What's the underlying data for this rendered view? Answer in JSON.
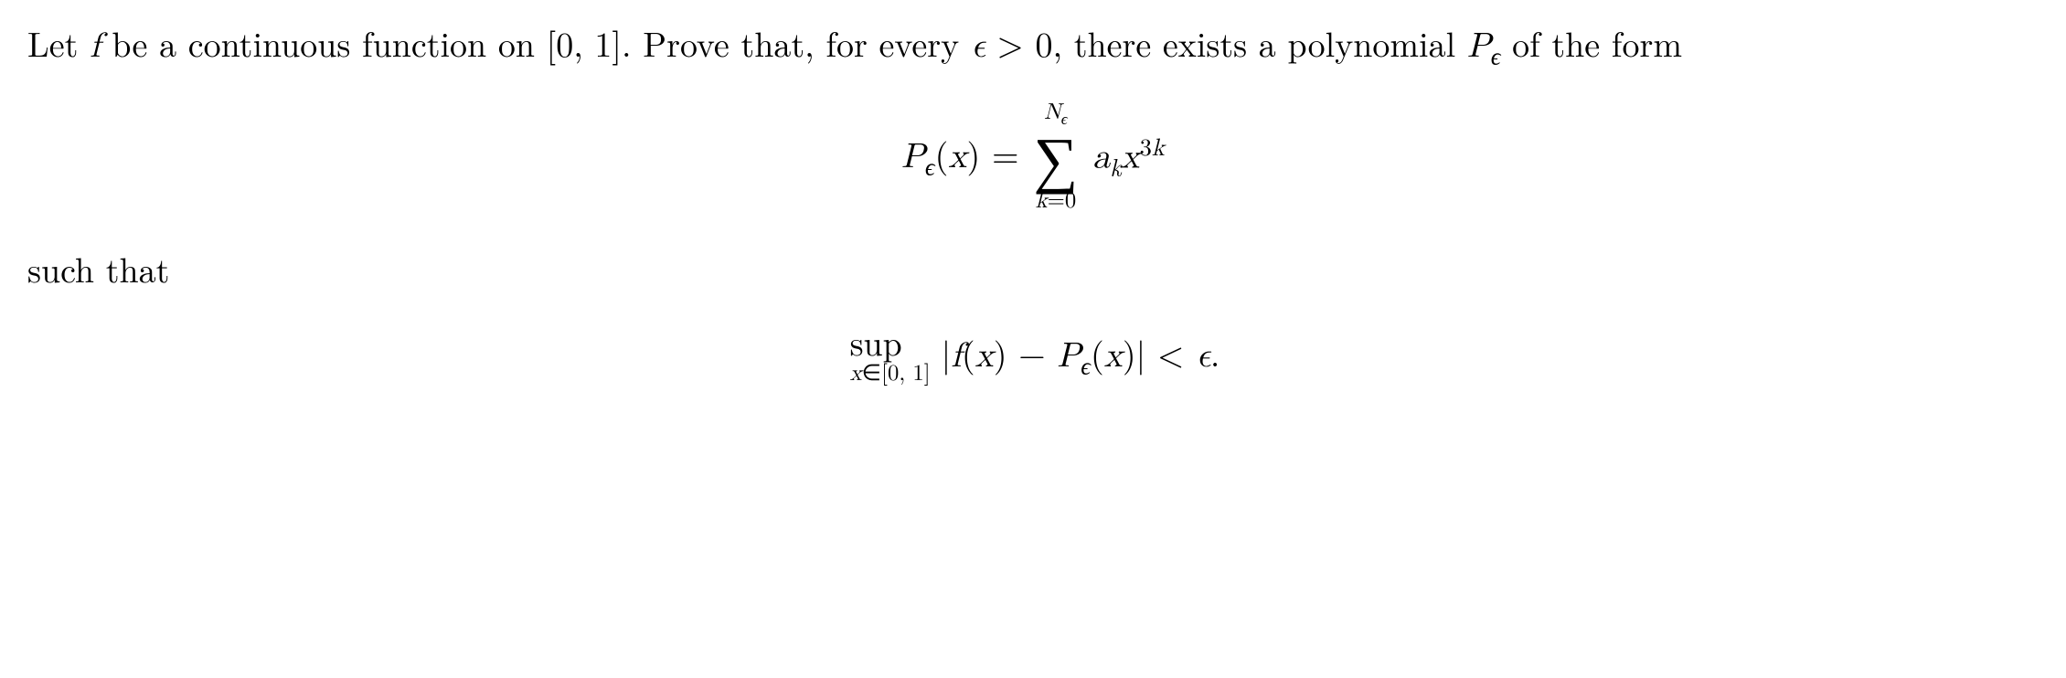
{
  "line1_part1": "Let ",
  "line1_f": "f",
  "line1_part2": " be a continuous function on [0, 1].  Prove that, for every ",
  "line1_eps": "ϵ",
  "line1_part3": " > 0, there",
  "line2_part1": "exists a polynomial ",
  "line2_P": "P",
  "line2_eps_sub": "ϵ",
  "line2_part2": " of the form",
  "eq1_lhs_P": "P",
  "eq1_lhs_eps": "ϵ",
  "eq1_lhs_open": "(",
  "eq1_lhs_x": "x",
  "eq1_lhs_close": ") =",
  "eq1_sum_top_N": "N",
  "eq1_sum_top_eps": "ϵ",
  "eq1_sum_sigma": "∑",
  "eq1_sum_bottom_k": "k",
  "eq1_sum_bottom_eq": "=0",
  "eq1_a": "a",
  "eq1_k": "k",
  "eq1_x": "x",
  "eq1_exp3": "3",
  "eq1_expk": "k",
  "such_that": "such that",
  "eq2_sup": "sup",
  "eq2_sup_x": "x",
  "eq2_sup_in": "∈[0, 1]",
  "eq2_bar1": "|",
  "eq2_f": "f",
  "eq2_open1": "(",
  "eq2_x1": "x",
  "eq2_close1": ") − ",
  "eq2_P": "P",
  "eq2_eps_sub": "ϵ",
  "eq2_open2": "(",
  "eq2_x2": "x",
  "eq2_close2": ")",
  "eq2_bar2": "|",
  "eq2_lt": " < ",
  "eq2_eps": "ϵ",
  "eq2_dot": "."
}
